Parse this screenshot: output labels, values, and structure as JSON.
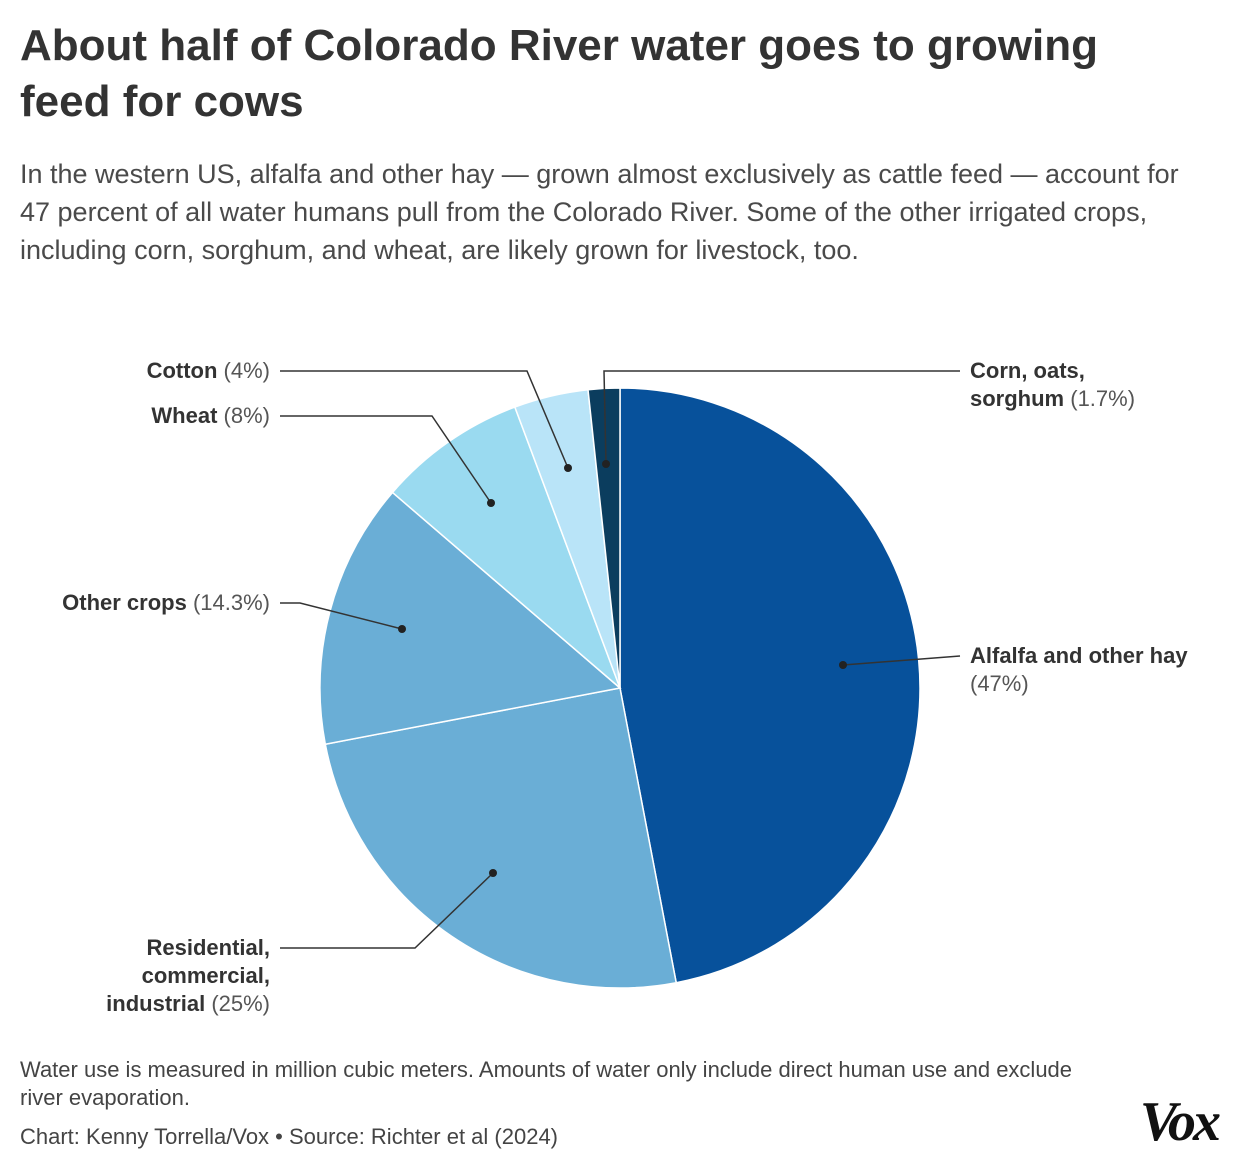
{
  "chart_data": {
    "type": "pie",
    "title": "About half of Colorado River water goes to growing feed for cows",
    "subtitle": "In the western US, alfalfa and other hay — grown almost exclusively as cattle feed — account for 47 percent of all water humans pull from the Colorado River. Some of the other irrigated crops, including corn, sorghum, and wheat, are likely grown for livestock, too.",
    "categories": [
      "Alfalfa and other hay",
      "Residential, commercial, industrial",
      "Other crops",
      "Wheat",
      "Cotton",
      "Corn, oats, sorghum"
    ],
    "values": [
      47,
      25,
      14.3,
      8,
      4,
      1.7
    ],
    "value_labels": [
      "(47%)",
      "(25%)",
      "(14.3%)",
      "(8%)",
      "(4%)",
      "(1.7%)"
    ],
    "colors": [
      "#07519b",
      "#6aaed6",
      "#6aaed6",
      "#9adaf0",
      "#b9e4f8",
      "#0b3d5e"
    ],
    "note": "Water use is measured in million cubic meters. Amounts of water only include direct human use and exclude river evaporation.",
    "credit": "Chart: Kenny Torrella/Vox • Source: Richter et al (2024)",
    "logo": "Vox"
  }
}
